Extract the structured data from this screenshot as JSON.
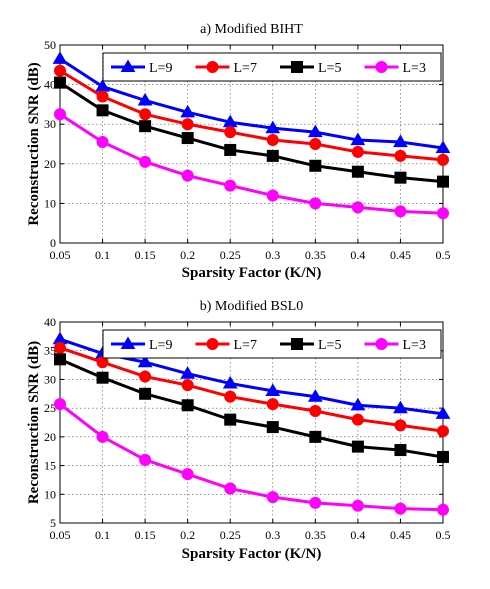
{
  "chart_data": [
    {
      "type": "line",
      "title": "a) Modified BIHT",
      "xlabel": "Sparsity Factor (K/N)",
      "ylabel": "Reconstruction SNR (dB)",
      "x": [
        0.05,
        0.1,
        0.15,
        0.2,
        0.25,
        0.3,
        0.35,
        0.4,
        0.45,
        0.5
      ],
      "x_tick_labels": [
        "0.05",
        "0.1",
        "0.15",
        "0.2",
        "0.25",
        "0.3",
        "0.35",
        "0.4",
        "0.45",
        "0.5"
      ],
      "y_ticks": [
        0,
        10,
        20,
        30,
        40,
        50
      ],
      "xlim": [
        0.05,
        0.5
      ],
      "ylim": [
        0,
        50
      ],
      "grid": true,
      "legend_position": "top",
      "series": [
        {
          "name": "L=9",
          "color": "#0000ff",
          "marker": "triangle",
          "values": [
            46.5,
            39.5,
            36.0,
            33.0,
            30.5,
            29.0,
            28.0,
            26.0,
            25.5,
            24.0
          ]
        },
        {
          "name": "L=7",
          "color": "#ff0000",
          "marker": "circle",
          "values": [
            43.5,
            37.0,
            32.5,
            30.0,
            28.0,
            26.0,
            25.0,
            23.0,
            22.0,
            21.0
          ]
        },
        {
          "name": "L=5",
          "color": "#000000",
          "marker": "square",
          "values": [
            40.5,
            33.5,
            29.5,
            26.5,
            23.5,
            22.0,
            19.5,
            18.0,
            16.5,
            15.5
          ]
        },
        {
          "name": "L=3",
          "color": "#ff00ff",
          "marker": "circle",
          "values": [
            32.5,
            25.5,
            20.5,
            17.0,
            14.5,
            12.0,
            10.0,
            9.0,
            8.0,
            7.5
          ]
        }
      ]
    },
    {
      "type": "line",
      "title": "b) Modified BSL0",
      "xlabel": "Sparsity Factor (K/N)",
      "ylabel": "Reconstruction SNR (dB)",
      "x": [
        0.05,
        0.1,
        0.15,
        0.2,
        0.25,
        0.3,
        0.35,
        0.4,
        0.45,
        0.5
      ],
      "x_tick_labels": [
        "0.05",
        "0.1",
        "0.15",
        "0.2",
        "0.25",
        "0.3",
        "0.35",
        "0.4",
        "0.45",
        "0.5"
      ],
      "y_ticks": [
        5,
        10,
        15,
        20,
        25,
        30,
        35,
        40
      ],
      "xlim": [
        0.05,
        0.5
      ],
      "ylim": [
        5,
        40
      ],
      "grid": true,
      "legend_position": "top",
      "series": [
        {
          "name": "L=9",
          "color": "#0000ff",
          "marker": "triangle",
          "values": [
            37.0,
            34.5,
            33.0,
            31.0,
            29.3,
            28.0,
            27.0,
            25.5,
            25.0,
            24.0
          ]
        },
        {
          "name": "L=7",
          "color": "#ff0000",
          "marker": "circle",
          "values": [
            35.5,
            33.0,
            30.5,
            29.0,
            27.0,
            25.7,
            24.5,
            23.0,
            22.0,
            21.0
          ]
        },
        {
          "name": "L=5",
          "color": "#000000",
          "marker": "square",
          "values": [
            33.5,
            30.3,
            27.5,
            25.5,
            23.0,
            21.7,
            20.0,
            18.3,
            17.7,
            16.5
          ]
        },
        {
          "name": "L=3",
          "color": "#ff00ff",
          "marker": "circle",
          "values": [
            25.7,
            20.0,
            16.0,
            13.5,
            11.0,
            9.5,
            8.5,
            8.0,
            7.5,
            7.3
          ]
        }
      ]
    }
  ]
}
